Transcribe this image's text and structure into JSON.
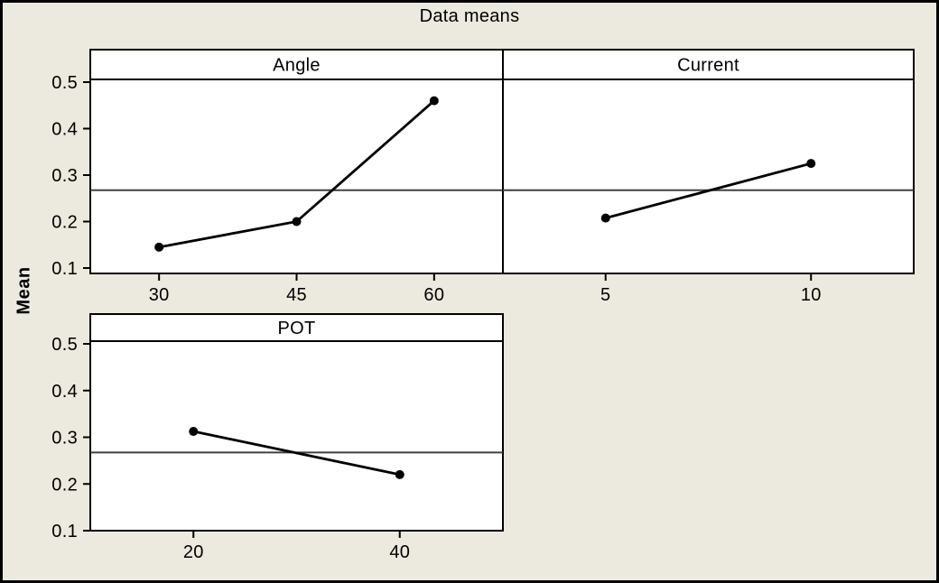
{
  "chart_data": {
    "type": "line",
    "title": "Data means",
    "ylabel": "Mean",
    "xlabel": "",
    "grid": false,
    "legend": "none",
    "yticks": [
      0.1,
      0.2,
      0.3,
      0.4,
      0.5
    ],
    "ylim": [
      0.085,
      0.505
    ],
    "reference_line": 0.2675,
    "panels": [
      {
        "label": "Angle",
        "categories": [
          "30",
          "45",
          "60"
        ],
        "values": [
          0.145,
          0.2,
          0.46
        ]
      },
      {
        "label": "Current",
        "categories": [
          "5",
          "10"
        ],
        "values": [
          0.2075,
          0.325
        ]
      },
      {
        "label": "POT",
        "categories": [
          "20",
          "40"
        ],
        "values": [
          0.3125,
          0.22
        ]
      }
    ]
  },
  "colors": {
    "background": "#ECE9DE",
    "panel_fill": "#FFFFFF",
    "border": "#000000",
    "series": "#000000",
    "reference_line": "#404040"
  }
}
